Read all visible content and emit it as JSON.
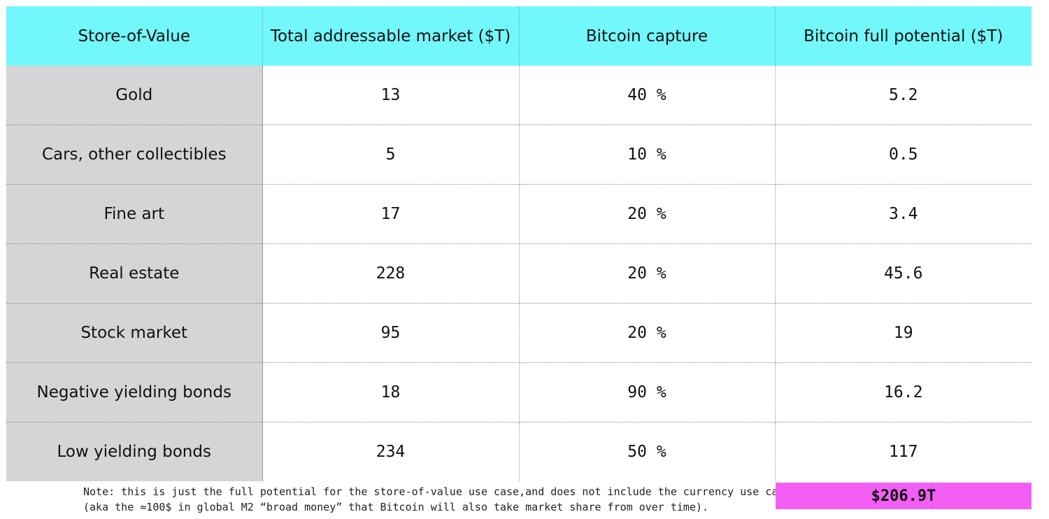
{
  "colors": {
    "header_bg": "#72f7fb",
    "category_bg": "#d5d5d5",
    "cell_bg": "#ffffff",
    "total_bg": "#f35ef5"
  },
  "headers": {
    "category": "Store-of-Value",
    "tam": "Total addressable market ($T)",
    "capture": "Bitcoin capture",
    "potential": "Bitcoin full potential ($T)"
  },
  "rows": [
    {
      "category": "Gold",
      "tam": "13",
      "capture": "40 %",
      "potential": "5.2"
    },
    {
      "category": "Cars, other collectibles",
      "tam": "5",
      "capture": "10 %",
      "potential": "0.5"
    },
    {
      "category": "Fine art",
      "tam": "17",
      "capture": "20 %",
      "potential": "3.4"
    },
    {
      "category": "Real estate",
      "tam": "228",
      "capture": "20 %",
      "potential": "45.6"
    },
    {
      "category": "Stock market",
      "tam": "95",
      "capture": "20 %",
      "potential": "19"
    },
    {
      "category": "Negative yielding bonds",
      "tam": "18",
      "capture": "90 %",
      "potential": "16.2"
    },
    {
      "category": "Low yielding bonds",
      "tam": "234",
      "capture": "50 %",
      "potential": "117"
    }
  ],
  "note": {
    "line1": "Note: this is just the full potential for the store-of-value use case,and does not include the currency use case",
    "line2": "(aka the ≈100$ in global M2 “broad money” that Bitcoin will also take market share from over time)."
  },
  "total": "$206.9T"
}
